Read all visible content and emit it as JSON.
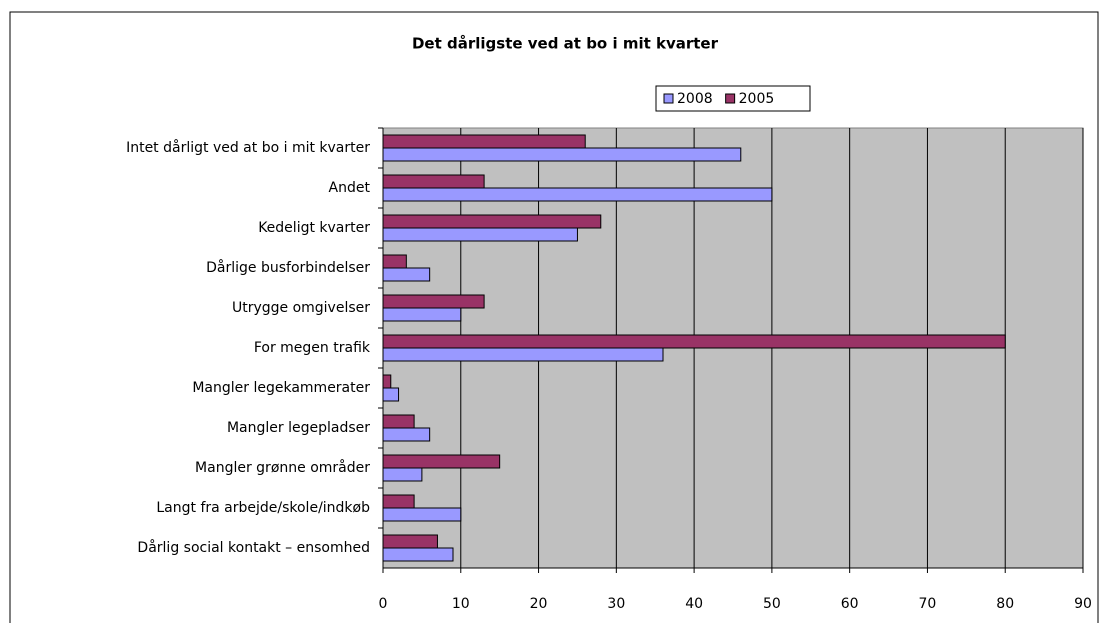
{
  "chart_data": {
    "type": "bar",
    "orientation": "horizontal",
    "title": "Det dårligste ved at bo i mit kvarter",
    "categories": [
      "Intet dårligt ved at bo i mit kvarter",
      "Andet",
      "Kedeligt kvarter",
      "Dårlige busforbindelser",
      "Utrygge omgivelser",
      "For megen trafik",
      "Mangler legekammerater",
      "Mangler legepladser",
      "Mangler grønne områder",
      "Langt fra arbejde/skole/indkøb",
      "Dårlig social kontakt – ensomhed"
    ],
    "series": [
      {
        "name": "2008",
        "color": "#9999ff",
        "values": [
          46,
          50,
          25,
          6,
          10,
          36,
          2,
          6,
          5,
          10,
          9
        ]
      },
      {
        "name": "2005",
        "color": "#993366",
        "values": [
          26,
          13,
          28,
          3,
          13,
          80,
          1,
          4,
          15,
          4,
          7
        ]
      }
    ],
    "xlim": [
      0,
      90
    ],
    "xticks": [
      0,
      10,
      20,
      30,
      40,
      50,
      60,
      70,
      80,
      90
    ],
    "grid": true,
    "legend": "top",
    "plot_background": "#c0c0c0"
  }
}
